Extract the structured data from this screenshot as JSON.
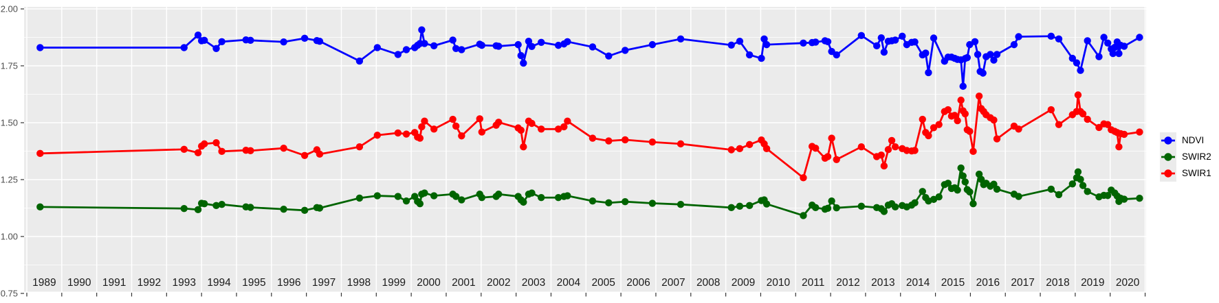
{
  "colors": {
    "panel_background": "#EBEBEB",
    "plot_background": "#FFFFFF",
    "gridline": "#FFFFFF",
    "axis_tick": "#333333",
    "axis_text": "#4D4D4D",
    "year_text": "#1A1A1A",
    "legend_key_background": "#EBEBEB",
    "legend_text": "#000000"
  },
  "chart_data": {
    "type": "line",
    "title": "",
    "xlabel": "",
    "ylabel": "",
    "grid": "on",
    "x_axis": {
      "kind": "years",
      "first_gridline": 1989,
      "last_gridline": 2021,
      "year_labels": [
        "1989",
        "1990",
        "1991",
        "1992",
        "1993",
        "1994",
        "1995",
        "1996",
        "1997",
        "1998",
        "1999",
        "2000",
        "2001",
        "2002",
        "2003",
        "2004",
        "2005",
        "2006",
        "2007",
        "2008",
        "2009",
        "2010",
        "2011",
        "2012",
        "2013",
        "2014",
        "2015",
        "2016",
        "2017",
        "2018",
        "2019",
        "2020"
      ]
    },
    "y_axis": {
      "range": [
        0.75,
        2.0
      ],
      "major_ticks": [
        2.0,
        1.75,
        1.5,
        1.25,
        1.0,
        0.75
      ],
      "tick_labels": [
        "2.00",
        "1.75",
        "1.50",
        "1.25",
        "1.00",
        "0.75"
      ],
      "minor_ticks": [
        1.875,
        1.625,
        1.375,
        1.125,
        0.875
      ]
    },
    "legend": {
      "position": "right",
      "entries": [
        "NDVI",
        "SWIR2",
        "SWIR1"
      ]
    },
    "series": [
      {
        "name": "NDVI",
        "color": "#0000FF",
        "x": [
          1989.38,
          1993.5,
          1993.9,
          1994.0,
          1994.08,
          1994.42,
          1994.58,
          1995.27,
          1995.4,
          1996.35,
          1996.95,
          1997.3,
          1997.38,
          1998.52,
          1999.03,
          1999.62,
          1999.86,
          2000.1,
          2000.18,
          2000.25,
          2000.3,
          2000.38,
          2000.65,
          2001.19,
          2001.28,
          2001.44,
          2001.96,
          2002.02,
          2002.43,
          2002.5,
          2003.06,
          2003.14,
          2003.21,
          2003.36,
          2003.45,
          2003.72,
          2004.21,
          2004.37,
          2004.47,
          2005.19,
          2005.65,
          2006.12,
          2006.9,
          2007.71,
          2009.16,
          2009.4,
          2009.68,
          2010.02,
          2010.1,
          2010.17,
          2011.22,
          2011.47,
          2011.57,
          2011.84,
          2011.92,
          2012.03,
          2012.17,
          2012.88,
          2013.32,
          2013.45,
          2013.53,
          2013.65,
          2013.75,
          2013.85,
          2014.05,
          2014.18,
          2014.32,
          2014.41,
          2014.63,
          2014.72,
          2014.8,
          2014.95,
          2015.26,
          2015.36,
          2015.46,
          2015.55,
          2015.63,
          2015.73,
          2015.79,
          2015.85,
          2015.91,
          2015.98,
          2016.13,
          2016.21,
          2016.28,
          2016.36,
          2016.45,
          2016.57,
          2016.67,
          2016.76,
          2017.25,
          2017.38,
          2018.31,
          2018.53,
          2018.92,
          2019.04,
          2019.15,
          2019.35,
          2019.68,
          2019.82,
          2019.93,
          2020.03,
          2020.08,
          2020.13,
          2020.2,
          2020.25,
          2020.3,
          2020.4,
          2020.84
        ],
        "y": [
          1.83,
          1.83,
          1.885,
          1.86,
          1.862,
          1.826,
          1.856,
          1.864,
          1.862,
          1.855,
          1.871,
          1.861,
          1.858,
          1.771,
          1.83,
          1.8,
          1.821,
          1.83,
          1.84,
          1.848,
          1.908,
          1.848,
          1.838,
          1.863,
          1.826,
          1.821,
          1.845,
          1.84,
          1.838,
          1.836,
          1.843,
          1.795,
          1.762,
          1.858,
          1.835,
          1.853,
          1.84,
          1.846,
          1.856,
          1.833,
          1.793,
          1.818,
          1.843,
          1.868,
          1.841,
          1.858,
          1.798,
          1.783,
          1.868,
          1.843,
          1.85,
          1.852,
          1.854,
          1.86,
          1.856,
          1.813,
          1.798,
          1.883,
          1.838,
          1.873,
          1.81,
          1.858,
          1.86,
          1.863,
          1.88,
          1.843,
          1.853,
          1.855,
          1.798,
          1.806,
          1.72,
          1.872,
          1.77,
          1.788,
          1.788,
          1.783,
          1.778,
          1.776,
          1.66,
          1.782,
          1.786,
          1.843,
          1.856,
          1.8,
          1.725,
          1.718,
          1.79,
          1.8,
          1.775,
          1.8,
          1.843,
          1.878,
          1.88,
          1.868,
          1.783,
          1.763,
          1.73,
          1.86,
          1.79,
          1.875,
          1.85,
          1.824,
          1.804,
          1.831,
          1.855,
          1.804,
          1.84,
          1.836,
          1.875
        ]
      },
      {
        "name": "SWIR2",
        "color": "#006400",
        "x": [
          1989.38,
          1993.5,
          1993.9,
          1994.0,
          1994.08,
          1994.42,
          1994.58,
          1995.27,
          1995.4,
          1996.35,
          1996.95,
          1997.3,
          1997.38,
          1998.52,
          1999.03,
          1999.62,
          1999.86,
          2000.1,
          2000.18,
          2000.25,
          2000.3,
          2000.38,
          2000.65,
          2001.19,
          2001.28,
          2001.44,
          2001.96,
          2002.02,
          2002.43,
          2002.5,
          2003.06,
          2003.14,
          2003.21,
          2003.36,
          2003.45,
          2003.72,
          2004.21,
          2004.37,
          2004.47,
          2005.19,
          2005.65,
          2006.12,
          2006.9,
          2007.71,
          2009.16,
          2009.4,
          2009.68,
          2010.02,
          2010.1,
          2010.17,
          2011.22,
          2011.47,
          2011.57,
          2011.84,
          2011.92,
          2012.03,
          2012.17,
          2012.88,
          2013.32,
          2013.45,
          2013.53,
          2013.65,
          2013.75,
          2013.85,
          2014.05,
          2014.18,
          2014.32,
          2014.41,
          2014.63,
          2014.72,
          2014.8,
          2014.95,
          2015.1,
          2015.26,
          2015.36,
          2015.46,
          2015.55,
          2015.63,
          2015.73,
          2015.79,
          2015.85,
          2015.91,
          2015.98,
          2016.08,
          2016.25,
          2016.31,
          2016.38,
          2016.45,
          2016.57,
          2016.67,
          2016.76,
          2017.25,
          2017.38,
          2018.31,
          2018.53,
          2018.92,
          2019.04,
          2019.08,
          2019.15,
          2019.22,
          2019.35,
          2019.68,
          2019.82,
          2019.93,
          2020.03,
          2020.13,
          2020.2,
          2020.25,
          2020.3,
          2020.4,
          2020.84
        ],
        "y": [
          1.13,
          1.123,
          1.118,
          1.146,
          1.144,
          1.136,
          1.141,
          1.13,
          1.128,
          1.12,
          1.115,
          1.127,
          1.125,
          1.169,
          1.179,
          1.176,
          1.156,
          1.176,
          1.154,
          1.144,
          1.186,
          1.191,
          1.179,
          1.186,
          1.176,
          1.161,
          1.186,
          1.171,
          1.176,
          1.186,
          1.176,
          1.161,
          1.151,
          1.186,
          1.191,
          1.171,
          1.171,
          1.176,
          1.179,
          1.156,
          1.148,
          1.153,
          1.146,
          1.141,
          1.127,
          1.133,
          1.136,
          1.158,
          1.161,
          1.143,
          1.092,
          1.138,
          1.127,
          1.12,
          1.124,
          1.156,
          1.126,
          1.133,
          1.127,
          1.122,
          1.11,
          1.138,
          1.144,
          1.13,
          1.136,
          1.13,
          1.138,
          1.148,
          1.198,
          1.171,
          1.156,
          1.163,
          1.174,
          1.228,
          1.234,
          1.211,
          1.214,
          1.204,
          1.301,
          1.266,
          1.24,
          1.206,
          1.196,
          1.144,
          1.274,
          1.251,
          1.228,
          1.234,
          1.221,
          1.23,
          1.208,
          1.186,
          1.176,
          1.208,
          1.184,
          1.231,
          1.258,
          1.284,
          1.251,
          1.224,
          1.198,
          1.174,
          1.181,
          1.18,
          1.204,
          1.191,
          1.178,
          1.154,
          1.168,
          1.164,
          1.168
        ]
      },
      {
        "name": "SWIR1",
        "color": "#FF0000",
        "x": [
          1989.38,
          1993.5,
          1993.9,
          1994.0,
          1994.08,
          1994.42,
          1994.58,
          1995.27,
          1995.4,
          1996.35,
          1996.95,
          1997.3,
          1997.38,
          1998.52,
          1999.03,
          1999.62,
          1999.86,
          2000.1,
          2000.18,
          2000.25,
          2000.3,
          2000.38,
          2000.65,
          2001.19,
          2001.28,
          2001.44,
          2001.96,
          2002.02,
          2002.43,
          2002.5,
          2003.06,
          2003.14,
          2003.21,
          2003.36,
          2003.45,
          2003.72,
          2004.21,
          2004.37,
          2004.47,
          2005.19,
          2005.65,
          2006.12,
          2006.9,
          2007.71,
          2009.16,
          2009.4,
          2009.68,
          2010.02,
          2010.1,
          2010.17,
          2011.22,
          2011.47,
          2011.57,
          2011.84,
          2011.92,
          2012.03,
          2012.17,
          2012.88,
          2013.32,
          2013.45,
          2013.53,
          2013.65,
          2013.75,
          2013.85,
          2014.05,
          2014.18,
          2014.32,
          2014.41,
          2014.63,
          2014.72,
          2014.8,
          2014.95,
          2015.1,
          2015.26,
          2015.36,
          2015.46,
          2015.55,
          2015.63,
          2015.73,
          2015.79,
          2015.85,
          2015.91,
          2015.98,
          2016.08,
          2016.25,
          2016.31,
          2016.38,
          2016.45,
          2016.57,
          2016.67,
          2016.76,
          2017.25,
          2017.38,
          2018.31,
          2018.53,
          2018.92,
          2019.04,
          2019.08,
          2019.15,
          2019.22,
          2019.35,
          2019.68,
          2019.82,
          2019.93,
          2020.03,
          2020.13,
          2020.2,
          2020.25,
          2020.3,
          2020.4,
          2020.84
        ],
        "y": [
          1.365,
          1.383,
          1.368,
          1.397,
          1.407,
          1.412,
          1.374,
          1.379,
          1.377,
          1.388,
          1.356,
          1.381,
          1.362,
          1.394,
          1.445,
          1.455,
          1.45,
          1.457,
          1.437,
          1.432,
          1.482,
          1.507,
          1.472,
          1.515,
          1.485,
          1.442,
          1.517,
          1.459,
          1.489,
          1.502,
          1.477,
          1.467,
          1.394,
          1.507,
          1.497,
          1.472,
          1.472,
          1.482,
          1.507,
          1.432,
          1.42,
          1.425,
          1.415,
          1.407,
          1.381,
          1.386,
          1.404,
          1.424,
          1.407,
          1.386,
          1.258,
          1.396,
          1.388,
          1.344,
          1.351,
          1.432,
          1.338,
          1.394,
          1.351,
          1.358,
          1.31,
          1.382,
          1.422,
          1.394,
          1.386,
          1.378,
          1.376,
          1.378,
          1.515,
          1.457,
          1.443,
          1.478,
          1.492,
          1.549,
          1.557,
          1.529,
          1.532,
          1.509,
          1.599,
          1.552,
          1.539,
          1.469,
          1.462,
          1.374,
          1.617,
          1.562,
          1.549,
          1.535,
          1.522,
          1.512,
          1.429,
          1.485,
          1.472,
          1.557,
          1.492,
          1.535,
          1.549,
          1.622,
          1.549,
          1.539,
          1.515,
          1.479,
          1.495,
          1.492,
          1.469,
          1.462,
          1.457,
          1.394,
          1.452,
          1.449,
          1.459
        ]
      }
    ]
  }
}
